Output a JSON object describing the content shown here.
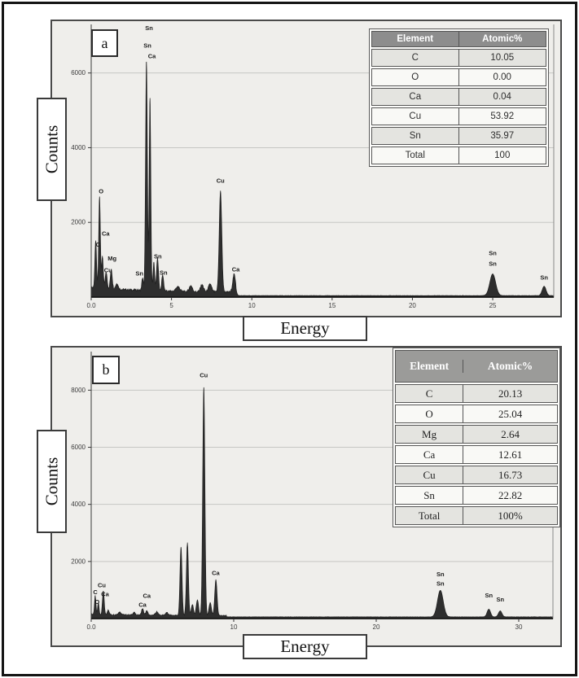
{
  "figure": {
    "counts_label": "Counts",
    "energy_label": "Energy"
  },
  "chart_data": [
    {
      "type": "area",
      "panel_label": "a",
      "xlabel": "Energy",
      "ylabel": "Counts",
      "xlim": [
        0,
        28.8
      ],
      "ylim": [
        0,
        7300
      ],
      "grid": true,
      "legend": "none",
      "x_ticks": [
        {
          "v": 0,
          "t": "0.0"
        },
        {
          "v": 5,
          "t": "5"
        },
        {
          "v": 10,
          "t": "10"
        },
        {
          "v": 15,
          "t": "15"
        },
        {
          "v": 20,
          "t": "20"
        },
        {
          "v": 25,
          "t": "25"
        }
      ],
      "y_ticks": [
        {
          "v": 2000,
          "t": "2000"
        },
        {
          "v": 4000,
          "t": "4000"
        },
        {
          "v": 6000,
          "t": "6000"
        }
      ],
      "noise": {
        "until": 9.0,
        "amp": 55,
        "base_in": 150,
        "base_decay": 4,
        "base_floor": 85,
        "base_out": 35
      },
      "peaks": [
        [
          0.28,
          1250,
          0.05
        ],
        [
          0.52,
          2450,
          0.05
        ],
        [
          0.7,
          850,
          0.05
        ],
        [
          0.93,
          430,
          0.06
        ],
        [
          1.25,
          520,
          0.06
        ],
        [
          1.6,
          150,
          0.08
        ],
        [
          3.2,
          330,
          0.05
        ],
        [
          3.44,
          6150,
          0.055
        ],
        [
          3.66,
          5150,
          0.05
        ],
        [
          3.9,
          750,
          0.05
        ],
        [
          4.13,
          880,
          0.06
        ],
        [
          4.45,
          430,
          0.06
        ],
        [
          5.4,
          130,
          0.12
        ],
        [
          6.2,
          160,
          0.1
        ],
        [
          6.9,
          190,
          0.1
        ],
        [
          7.4,
          210,
          0.1
        ],
        [
          8.05,
          2700,
          0.08
        ],
        [
          8.9,
          480,
          0.09
        ],
        [
          25.0,
          580,
          0.18
        ],
        [
          28.2,
          250,
          0.12
        ]
      ],
      "peak_labels": [
        {
          "t": "Sn",
          "e": 3.6,
          "c": 7150
        },
        {
          "t": "Sn",
          "e": 3.5,
          "c": 6680
        },
        {
          "t": "Ca",
          "e": 3.78,
          "c": 6400
        },
        {
          "t": "O",
          "e": 0.62,
          "c": 2780
        },
        {
          "t": "Ca",
          "e": 0.9,
          "c": 1640
        },
        {
          "t": "C",
          "e": 0.42,
          "c": 1350
        },
        {
          "t": "Mg",
          "e": 1.3,
          "c": 980
        },
        {
          "t": "Cu",
          "e": 1.05,
          "c": 660
        },
        {
          "t": "Sn",
          "e": 3.0,
          "c": 580
        },
        {
          "t": "Sn",
          "e": 4.15,
          "c": 1030
        },
        {
          "t": "Sn",
          "e": 4.5,
          "c": 600
        },
        {
          "t": "Cu",
          "e": 8.05,
          "c": 3060
        },
        {
          "t": "Ca",
          "e": 9.0,
          "c": 690
        },
        {
          "t": "Sn",
          "e": 25.0,
          "c": 1120
        },
        {
          "t": "Sn",
          "e": 25.0,
          "c": 840
        },
        {
          "t": "Sn",
          "e": 28.2,
          "c": 470
        }
      ],
      "inset_table": {
        "headers": [
          "Element",
          "Atomic%"
        ],
        "rows": [
          [
            "C",
            "10.05"
          ],
          [
            "O",
            "0.00"
          ],
          [
            "Ca",
            "0.04"
          ],
          [
            "Cu",
            "53.92"
          ],
          [
            "Sn",
            "35.97"
          ],
          [
            "Total",
            "100"
          ]
        ]
      }
    },
    {
      "type": "area",
      "panel_label": "b",
      "xlabel": "Energy",
      "ylabel": "Counts",
      "xlim": [
        0,
        32.4
      ],
      "ylim": [
        0,
        9350
      ],
      "grid": true,
      "legend": "none",
      "x_ticks": [
        {
          "v": 0,
          "t": "0.0"
        },
        {
          "v": 10,
          "t": "10"
        },
        {
          "v": 20,
          "t": "20"
        },
        {
          "v": 30,
          "t": "30"
        }
      ],
      "y_ticks": [
        {
          "v": 2000,
          "t": "2000"
        },
        {
          "v": 4000,
          "t": "4000"
        },
        {
          "v": 6000,
          "t": "6000"
        },
        {
          "v": 8000,
          "t": "8000"
        }
      ],
      "noise": {
        "until": 9.5,
        "amp": 45,
        "base_in": 60,
        "base_decay": 5,
        "base_floor": 70,
        "base_out": 55
      },
      "peaks": [
        [
          0.28,
          640,
          0.05
        ],
        [
          0.5,
          400,
          0.05
        ],
        [
          0.85,
          830,
          0.06
        ],
        [
          1.2,
          170,
          0.06
        ],
        [
          2.0,
          90,
          0.12
        ],
        [
          3.0,
          90,
          0.08
        ],
        [
          3.6,
          220,
          0.07
        ],
        [
          3.9,
          150,
          0.07
        ],
        [
          4.6,
          110,
          0.1
        ],
        [
          5.3,
          90,
          0.1
        ],
        [
          6.3,
          2400,
          0.07
        ],
        [
          6.75,
          2550,
          0.07
        ],
        [
          7.1,
          380,
          0.08
        ],
        [
          7.45,
          550,
          0.08
        ],
        [
          7.9,
          8000,
          0.075
        ],
        [
          8.35,
          450,
          0.08
        ],
        [
          8.75,
          1250,
          0.08
        ],
        [
          24.5,
          930,
          0.2
        ],
        [
          27.9,
          270,
          0.12
        ],
        [
          28.7,
          210,
          0.12
        ]
      ],
      "peak_labels": [
        {
          "t": "Cu",
          "e": 7.9,
          "c": 8450
        },
        {
          "t": "C",
          "e": 0.29,
          "c": 860
        },
        {
          "t": "Cu",
          "e": 0.74,
          "c": 1100
        },
        {
          "t": "O",
          "e": 0.42,
          "c": 510
        },
        {
          "t": "Ca",
          "e": 0.97,
          "c": 780
        },
        {
          "t": "Ca",
          "e": 3.6,
          "c": 420
        },
        {
          "t": "Ca",
          "e": 3.9,
          "c": 720
        },
        {
          "t": "Ca",
          "e": 8.74,
          "c": 1520
        },
        {
          "t": "Sn",
          "e": 24.5,
          "c": 1480
        },
        {
          "t": "Sn",
          "e": 24.5,
          "c": 1150
        },
        {
          "t": "Sn",
          "e": 27.9,
          "c": 740
        },
        {
          "t": "Sn",
          "e": 28.7,
          "c": 600
        }
      ],
      "inset_table": {
        "headers": [
          "Element",
          "Atomic%"
        ],
        "rows": [
          [
            "C",
            "20.13"
          ],
          [
            "O",
            "25.04"
          ],
          [
            "Mg",
            "2.64"
          ],
          [
            "Ca",
            "12.61"
          ],
          [
            "Cu",
            "16.73"
          ],
          [
            "Sn",
            "22.82"
          ],
          [
            "Total",
            "100%"
          ]
        ]
      }
    }
  ]
}
